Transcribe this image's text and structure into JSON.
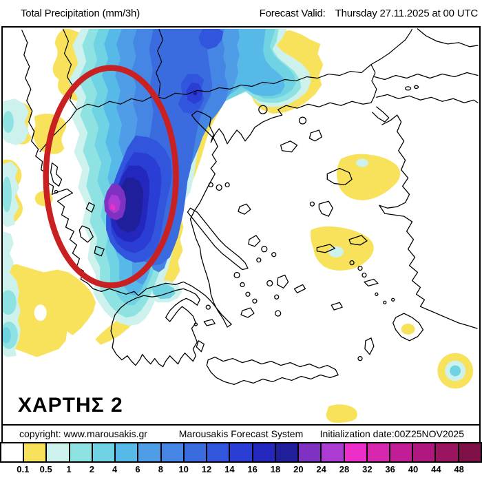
{
  "header": {
    "title": "Total Precipitation (mm/3h)",
    "forecast_label": "Forecast Valid:",
    "forecast_value": "Thursday 27.11.2025 at 00 UTC"
  },
  "map": {
    "label": "ΧΑΡΤΗΣ 2",
    "annotation": "red ellipse highlighting heavy precipitation band over NW Greece"
  },
  "footer": {
    "copyright": "copyright: www.marousakis.gr",
    "system": "Marousakis Forecast System",
    "init": "Initialization date:00Z25NOV2025"
  },
  "legend": {
    "unit": "mm/3h",
    "ticks": [
      "0.1",
      "0.5",
      "1",
      "2",
      "4",
      "6",
      "8",
      "10",
      "12",
      "14",
      "16",
      "18",
      "20",
      "24",
      "28",
      "32",
      "36",
      "40",
      "44",
      "48"
    ],
    "colors": [
      "#FFFFFF",
      "#F8E25C",
      "#CDF2ED",
      "#8EE3E2",
      "#70D3E4",
      "#57B9E8",
      "#4F9DE7",
      "#4585E4",
      "#3A6CE0",
      "#3155DC",
      "#2A3ED5",
      "#2427BE",
      "#1F1F9C",
      "#7F31C1",
      "#AB3BD3",
      "#EE2EC8",
      "#D627AE",
      "#C21D96",
      "#B01880",
      "#9B145F",
      "#7E0F47"
    ]
  },
  "colors": {
    "accent_red": "#C92121",
    "yellow": "#F8E25C",
    "navy_core": "#1F1F9C"
  }
}
